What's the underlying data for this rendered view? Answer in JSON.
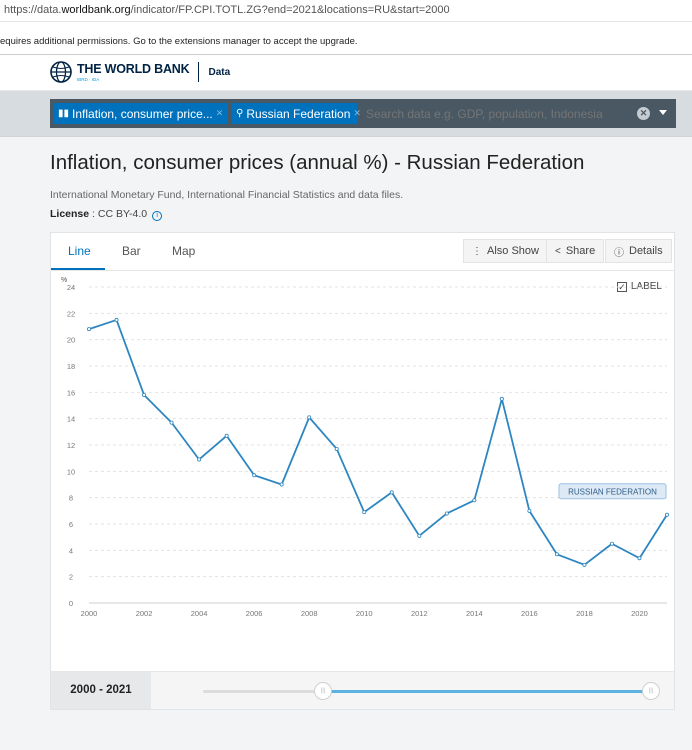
{
  "browser": {
    "url_prefix": "https://data.",
    "url_host": "worldbank.org",
    "url_rest": "/indicator/FP.CPI.TOTL.ZG?end=2021&locations=RU&start=2000"
  },
  "notice": {
    "text": "equires additional permissions. Go to the extensions manager to accept the upgrade."
  },
  "header": {
    "brand": "THE WORLD BANK",
    "brand_sub": "IBRD · IDA",
    "section": "Data"
  },
  "filters": {
    "chip_indicator": "Inflation, consumer price...",
    "chip_country": "Russian Federation",
    "search_placeholder": "Search data e.g. GDP, population, Indonesia"
  },
  "page": {
    "title": "Inflation, consumer prices (annual %) - Russian Federation",
    "source": "International Monetary Fund, International Financial Statistics and data files.",
    "license_label": "License",
    "license_value": " : CC BY-4.0"
  },
  "tabs": {
    "line": "Line",
    "bar": "Bar",
    "map": "Map"
  },
  "toolbar": {
    "also_show": "Also Show",
    "share": "Share",
    "details": "Details"
  },
  "label_toggle": "LABEL",
  "range": {
    "start": "2000",
    "end": "2021"
  },
  "colors": {
    "accent": "#0071bc",
    "line": "#2e86c1",
    "search_bg": "#4a5863",
    "slider_fill": "#5db2e2"
  },
  "chart_data": {
    "type": "line",
    "ylabel": "%",
    "ylim": [
      0,
      24
    ],
    "y_ticks": [
      0,
      2,
      4,
      6,
      8,
      10,
      12,
      14,
      16,
      18,
      20,
      22,
      24
    ],
    "x_ticks": [
      2000,
      2002,
      2004,
      2006,
      2008,
      2010,
      2012,
      2014,
      2016,
      2018,
      2020
    ],
    "x": [
      2000,
      2001,
      2002,
      2003,
      2004,
      2005,
      2006,
      2007,
      2008,
      2009,
      2010,
      2011,
      2012,
      2013,
      2014,
      2015,
      2016,
      2017,
      2018,
      2019,
      2020,
      2021
    ],
    "series": [
      {
        "name": "RUSSIAN FEDERATION",
        "values": [
          20.8,
          21.5,
          15.8,
          13.7,
          10.9,
          12.7,
          9.7,
          9.0,
          14.1,
          11.7,
          6.9,
          8.4,
          5.1,
          6.8,
          7.8,
          15.5,
          7.0,
          3.7,
          2.9,
          4.5,
          3.4,
          6.7
        ]
      }
    ],
    "grid": "horizontal-dashed"
  }
}
